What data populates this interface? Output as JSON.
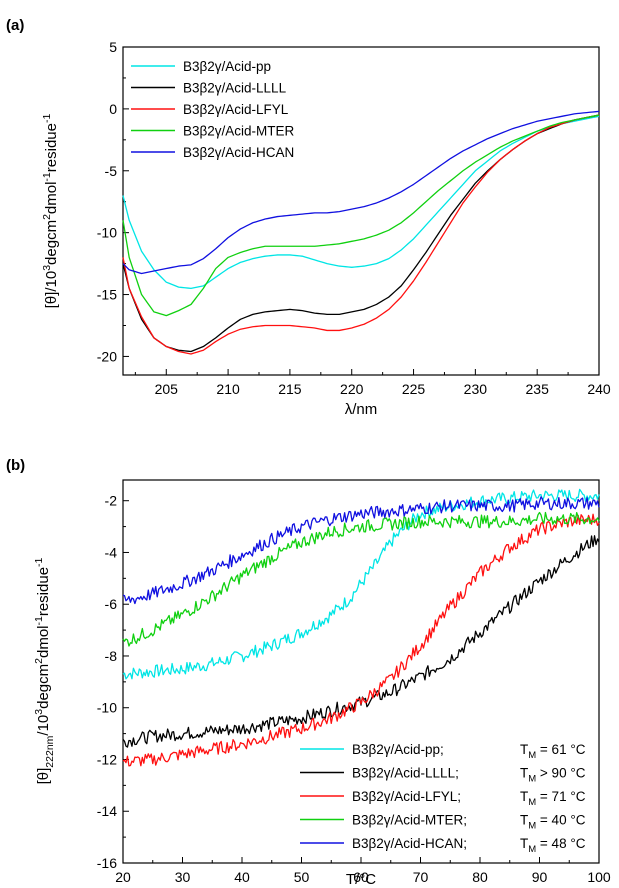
{
  "chart_data": [
    {
      "panel_label": "(a)",
      "type": "line",
      "xlabel": "λ/nm",
      "ylabel_parts": [
        "[θ]/10",
        "3",
        "degcm",
        "2",
        "dmol",
        "-1",
        "residue",
        "-1"
      ],
      "xlim": [
        201.5,
        240
      ],
      "ylim": [
        -21.5,
        5
      ],
      "xticks": [
        205,
        210,
        215,
        220,
        225,
        230,
        235,
        240
      ],
      "yticks": [
        5,
        0,
        -5,
        -10,
        -15,
        -20
      ],
      "legend_position": "top-left",
      "series": [
        {
          "name": "B3β2γ/Acid-pp",
          "color": "#00e5e5",
          "x": [
            201.5,
            202,
            203,
            204,
            205,
            206,
            207,
            208,
            209,
            210,
            211,
            212,
            213,
            214,
            215,
            216,
            217,
            218,
            219,
            220,
            221,
            222,
            223,
            224,
            225,
            226,
            227,
            228,
            229,
            230,
            231,
            232,
            233,
            234,
            235,
            236,
            237,
            238,
            239,
            240
          ],
          "y": [
            -7,
            -9,
            -11.5,
            -13,
            -14,
            -14.4,
            -14.5,
            -14.3,
            -13.6,
            -12.9,
            -12.4,
            -12.1,
            -11.9,
            -11.8,
            -11.8,
            -11.9,
            -12.2,
            -12.5,
            -12.7,
            -12.8,
            -12.7,
            -12.5,
            -12.1,
            -11.4,
            -10.5,
            -9.4,
            -8.3,
            -7.2,
            -6.1,
            -5.0,
            -4.2,
            -3.4,
            -2.8,
            -2.3,
            -1.8,
            -1.5,
            -1.2,
            -1.0,
            -0.8,
            -0.6
          ]
        },
        {
          "name": "B3β2γ/Acid-LLLL",
          "color": "#000000",
          "x": [
            201.5,
            202,
            203,
            204,
            205,
            206,
            207,
            208,
            209,
            210,
            211,
            212,
            213,
            214,
            215,
            216,
            217,
            218,
            219,
            220,
            221,
            222,
            223,
            224,
            225,
            226,
            227,
            228,
            229,
            230,
            231,
            232,
            233,
            234,
            235,
            236,
            237,
            238,
            239,
            240
          ],
          "y": [
            -12.5,
            -14.5,
            -17,
            -18.5,
            -19.2,
            -19.5,
            -19.6,
            -19.2,
            -18.5,
            -17.7,
            -17.0,
            -16.6,
            -16.4,
            -16.3,
            -16.2,
            -16.3,
            -16.5,
            -16.6,
            -16.6,
            -16.4,
            -16.2,
            -15.8,
            -15.2,
            -14.3,
            -13.0,
            -11.6,
            -10.1,
            -8.6,
            -7.3,
            -6.0,
            -5.0,
            -4.1,
            -3.3,
            -2.6,
            -2.0,
            -1.6,
            -1.2,
            -0.9,
            -0.7,
            -0.5
          ]
        },
        {
          "name": "B3β2γ/Acid-LFYL",
          "color": "#ff1010",
          "x": [
            201.5,
            202,
            203,
            204,
            205,
            206,
            207,
            208,
            209,
            210,
            211,
            212,
            213,
            214,
            215,
            216,
            217,
            218,
            219,
            220,
            221,
            222,
            223,
            224,
            225,
            226,
            227,
            228,
            229,
            230,
            231,
            232,
            233,
            234,
            235,
            236,
            237,
            238,
            239,
            240
          ],
          "y": [
            -12,
            -14.5,
            -16.8,
            -18.5,
            -19.2,
            -19.6,
            -19.8,
            -19.5,
            -18.8,
            -18.2,
            -17.8,
            -17.6,
            -17.5,
            -17.5,
            -17.5,
            -17.6,
            -17.7,
            -17.9,
            -17.9,
            -17.7,
            -17.4,
            -16.9,
            -16.2,
            -15.2,
            -13.9,
            -12.4,
            -10.8,
            -9.2,
            -7.6,
            -6.3,
            -5.1,
            -4.1,
            -3.3,
            -2.6,
            -2.0,
            -1.5,
            -1.2,
            -0.9,
            -0.7,
            -0.5
          ]
        },
        {
          "name": "B3β2γ/Acid-MTER",
          "color": "#10d010",
          "x": [
            201.5,
            202,
            203,
            204,
            205,
            206,
            207,
            208,
            209,
            210,
            211,
            212,
            213,
            214,
            215,
            216,
            217,
            218,
            219,
            220,
            221,
            222,
            223,
            224,
            225,
            226,
            227,
            228,
            229,
            230,
            231,
            232,
            233,
            234,
            235,
            236,
            237,
            238,
            239,
            240
          ],
          "y": [
            -9,
            -12,
            -15,
            -16.4,
            -16.7,
            -16.3,
            -15.8,
            -14.5,
            -12.9,
            -12.0,
            -11.6,
            -11.3,
            -11.1,
            -11.1,
            -11.1,
            -11.1,
            -11.1,
            -11.0,
            -10.9,
            -10.7,
            -10.5,
            -10.2,
            -9.8,
            -9.2,
            -8.4,
            -7.5,
            -6.6,
            -5.8,
            -5.0,
            -4.3,
            -3.7,
            -3.1,
            -2.6,
            -2.2,
            -1.8,
            -1.4,
            -1.1,
            -0.9,
            -0.7,
            -0.5
          ]
        },
        {
          "name": "B3β2γ/Acid-HCAN",
          "color": "#1010e0",
          "x": [
            201.5,
            202,
            203,
            204,
            205,
            206,
            207,
            208,
            209,
            210,
            211,
            212,
            213,
            214,
            215,
            216,
            217,
            218,
            219,
            220,
            221,
            222,
            223,
            224,
            225,
            226,
            227,
            228,
            229,
            230,
            231,
            232,
            233,
            234,
            235,
            236,
            237,
            238,
            239,
            240
          ],
          "y": [
            -12.5,
            -13,
            -13.3,
            -13.1,
            -12.9,
            -12.7,
            -12.6,
            -12.1,
            -11.3,
            -10.4,
            -9.7,
            -9.2,
            -8.9,
            -8.7,
            -8.6,
            -8.5,
            -8.4,
            -8.4,
            -8.3,
            -8.1,
            -7.9,
            -7.6,
            -7.2,
            -6.7,
            -6.1,
            -5.4,
            -4.7,
            -4.0,
            -3.4,
            -2.9,
            -2.4,
            -2.0,
            -1.6,
            -1.3,
            -1.0,
            -0.8,
            -0.6,
            -0.4,
            -0.3,
            -0.2
          ]
        }
      ]
    },
    {
      "panel_label": "(b)",
      "type": "line",
      "xlabel": "T/°C",
      "ylabel_parts": [
        "[θ]",
        "222nm",
        "/10",
        "3",
        "degcm",
        "2",
        "dmol",
        "-1",
        "residue",
        "-1"
      ],
      "xlim": [
        20,
        100
      ],
      "ylim": [
        -16,
        -1.2
      ],
      "xticks": [
        20,
        30,
        40,
        50,
        60,
        70,
        80,
        90,
        100
      ],
      "yticks": [
        -2,
        -4,
        -6,
        -8,
        -10,
        -12,
        -14,
        -16
      ],
      "legend_position": "bottom-right",
      "series": [
        {
          "name": "B3β2γ/Acid-pp;",
          "tm_label": "T",
          "tm_sub": "M",
          "tm_value": " = 61 °C",
          "color": "#00e5e5",
          "x": [
            20,
            25,
            30,
            35,
            40,
            45,
            50,
            55,
            58,
            60,
            63,
            65,
            68,
            70,
            75,
            80,
            85,
            90,
            95,
            100
          ],
          "y": [
            -8.7,
            -8.6,
            -8.5,
            -8.3,
            -8.0,
            -7.6,
            -7.1,
            -6.4,
            -5.8,
            -5.2,
            -4.3,
            -3.6,
            -2.9,
            -2.5,
            -2.2,
            -2.0,
            -1.9,
            -1.8,
            -1.8,
            -1.8
          ]
        },
        {
          "name": "B3β2γ/Acid-LLLL;",
          "tm_label": "T",
          "tm_sub": "M",
          "tm_value": " > 90 °C",
          "color": "#000000",
          "x": [
            20,
            25,
            30,
            35,
            40,
            45,
            50,
            55,
            60,
            65,
            70,
            75,
            80,
            85,
            90,
            95,
            100
          ],
          "y": [
            -11.3,
            -11.1,
            -11.0,
            -10.9,
            -10.8,
            -10.6,
            -10.4,
            -10.1,
            -9.8,
            -9.4,
            -8.8,
            -8.1,
            -7.1,
            -6.1,
            -5.1,
            -4.2,
            -3.4
          ]
        },
        {
          "name": "B3β2γ/Acid-LFYL;",
          "tm_label": "T",
          "tm_sub": "M",
          "tm_value": " = 71 °C",
          "color": "#ff1010",
          "x": [
            20,
            25,
            30,
            35,
            40,
            45,
            50,
            55,
            60,
            65,
            70,
            75,
            80,
            85,
            90,
            95,
            100
          ],
          "y": [
            -12.1,
            -12.0,
            -11.8,
            -11.6,
            -11.4,
            -11.1,
            -10.8,
            -10.4,
            -9.8,
            -8.9,
            -7.6,
            -6.1,
            -4.8,
            -3.8,
            -3.1,
            -2.8,
            -2.7
          ]
        },
        {
          "name": "B3β2γ/Acid-MTER;",
          "tm_label": "T",
          "tm_sub": "M",
          "tm_value": " = 40 °C",
          "color": "#10d010",
          "x": [
            20,
            25,
            30,
            35,
            40,
            45,
            50,
            55,
            60,
            65,
            70,
            75,
            80,
            85,
            90,
            95,
            100
          ],
          "y": [
            -7.5,
            -7.0,
            -6.4,
            -5.7,
            -4.9,
            -4.2,
            -3.6,
            -3.2,
            -3.0,
            -2.9,
            -2.8,
            -2.8,
            -2.8,
            -2.8,
            -2.7,
            -2.7,
            -2.7
          ]
        },
        {
          "name": "B3β2γ/Acid-HCAN;",
          "tm_label": "T",
          "tm_sub": "M",
          "tm_value": " = 48 °C",
          "color": "#1010e0",
          "x": [
            20,
            25,
            30,
            35,
            40,
            45,
            50,
            55,
            60,
            65,
            70,
            75,
            80,
            85,
            90,
            95,
            100
          ],
          "y": [
            -5.9,
            -5.6,
            -5.2,
            -4.7,
            -4.1,
            -3.5,
            -3.0,
            -2.7,
            -2.5,
            -2.4,
            -2.3,
            -2.2,
            -2.2,
            -2.2,
            -2.1,
            -2.1,
            -2.1
          ]
        }
      ]
    }
  ]
}
